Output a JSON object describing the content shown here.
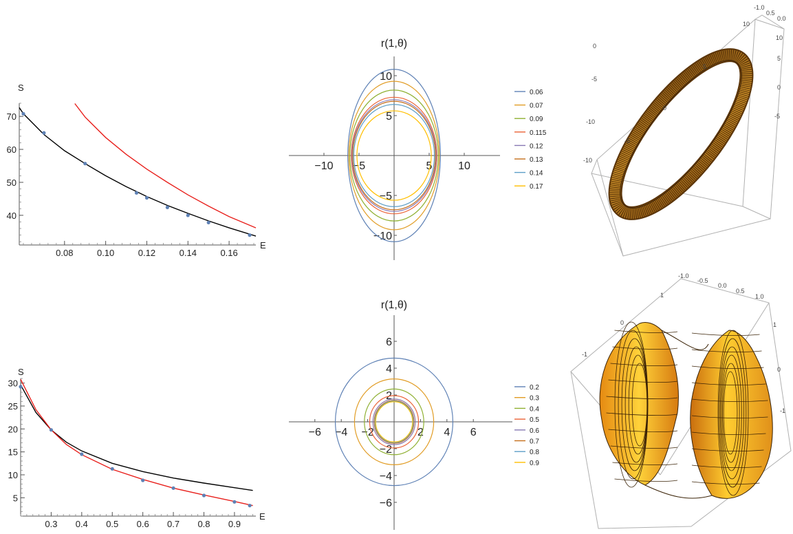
{
  "chart_data": [
    {
      "type": "line",
      "xlabel": "E",
      "ylabel": "S",
      "xlim": [
        0.058,
        0.173
      ],
      "ylim": [
        31,
        74
      ],
      "xticks": [
        0.08,
        0.1,
        0.12,
        0.14,
        0.16
      ],
      "xtick_labels": [
        "0.08",
        "0.10",
        "0.12",
        "0.14",
        "0.16"
      ],
      "yticks": [
        40,
        50,
        60,
        70
      ],
      "ytick_labels": [
        "40",
        "50",
        "60",
        "70"
      ],
      "points": {
        "color": "#5e81b5",
        "x": [
          0.06,
          0.07,
          0.09,
          0.115,
          0.12,
          0.13,
          0.14,
          0.15,
          0.17
        ],
        "y": [
          70.8,
          65.0,
          55.7,
          46.8,
          45.3,
          42.4,
          40.0,
          37.8,
          34.0
        ]
      },
      "series": [
        {
          "color": "#000000",
          "x": [
            0.058,
            0.06,
            0.07,
            0.08,
            0.09,
            0.1,
            0.11,
            0.115,
            0.12,
            0.13,
            0.14,
            0.15,
            0.16,
            0.173
          ],
          "y": [
            72.7,
            70.8,
            64.5,
            59.6,
            55.7,
            52.0,
            48.7,
            47.2,
            45.7,
            43.0,
            40.6,
            38.3,
            36.2,
            33.7
          ]
        },
        {
          "color": "#e8201c",
          "x": [
            0.085,
            0.09,
            0.1,
            0.11,
            0.12,
            0.13,
            0.14,
            0.15,
            0.16,
            0.173
          ],
          "y": [
            73.9,
            69.8,
            63.6,
            58.5,
            54.0,
            50.0,
            46.2,
            42.8,
            39.6,
            36.2
          ]
        }
      ]
    },
    {
      "type": "line",
      "title": "r(1,θ)",
      "xlim": [
        -13,
        13
      ],
      "ylim": [
        -13,
        13
      ],
      "xticks": [
        -10,
        -5,
        5,
        10
      ],
      "xtick_labels": [
        "−10",
        "−5",
        "5",
        "10"
      ],
      "yticks": [
        10,
        5,
        -5,
        -10
      ],
      "ytick_labels": [
        "10",
        "5",
        "−5",
        "−10"
      ],
      "series": [
        {
          "name": "0.06",
          "color": "#5e81b5",
          "rx": 6.6,
          "ry": 10.8
        },
        {
          "name": "0.07",
          "color": "#e19c24",
          "rx": 6.45,
          "ry": 9.3
        },
        {
          "name": "0.09",
          "color": "#8fb032",
          "rx": 6.3,
          "ry": 8.2
        },
        {
          "name": "0.115",
          "color": "#eb6235",
          "rx": 6.1,
          "ry": 7.3
        },
        {
          "name": "0.12",
          "color": "#8778b3",
          "rx": 6.0,
          "ry": 7.0
        },
        {
          "name": "0.13",
          "color": "#c56e1a",
          "rx": 5.9,
          "ry": 6.8
        },
        {
          "name": "0.14",
          "color": "#5d9ec7",
          "rx": 5.75,
          "ry": 6.4
        },
        {
          "name": "0.17",
          "color": "#ffbf00",
          "rx": 5.3,
          "ry": 5.6
        }
      ]
    },
    {
      "type": "line",
      "title": "r(1,θ)",
      "xlim": [
        -7,
        7
      ],
      "ylim": [
        -7,
        7
      ],
      "xticks": [
        -6,
        -4,
        -2,
        2,
        4,
        6
      ],
      "xtick_labels": [
        "−6",
        "−4",
        "−2",
        "2",
        "4",
        "6"
      ],
      "yticks": [
        6,
        4,
        2,
        -2,
        -4,
        -6
      ],
      "ytick_labels": [
        "6",
        "4",
        "2",
        "−2",
        "−4",
        "−6"
      ],
      "series": [
        {
          "name": "0.2",
          "color": "#5e81b5",
          "rx": 4.45,
          "ry": 4.75
        },
        {
          "name": "0.3",
          "color": "#e19c24",
          "rx": 3.0,
          "ry": 3.2
        },
        {
          "name": "0.4",
          "color": "#8fb032",
          "rx": 2.25,
          "ry": 2.45
        },
        {
          "name": "0.5",
          "color": "#eb6235",
          "rx": 1.85,
          "ry": 1.95
        },
        {
          "name": "0.6",
          "color": "#8778b3",
          "rx": 1.6,
          "ry": 1.7
        },
        {
          "name": "0.7",
          "color": "#c56e1a",
          "rx": 1.5,
          "ry": 1.6
        },
        {
          "name": "0.8",
          "color": "#5d9ec7",
          "rx": 1.45,
          "ry": 1.55
        },
        {
          "name": "0.9",
          "color": "#ffbf00",
          "rx": 1.4,
          "ry": 1.5
        }
      ]
    },
    {
      "type": "line",
      "xlabel": "E",
      "ylabel": "S",
      "xlim": [
        0.2,
        0.97
      ],
      "ylim": [
        1,
        31
      ],
      "xticks": [
        0.3,
        0.4,
        0.5,
        0.6,
        0.7,
        0.8,
        0.9
      ],
      "xtick_labels": [
        "0.3",
        "0.4",
        "0.5",
        "0.6",
        "0.7",
        "0.8",
        "0.9"
      ],
      "yticks": [
        5,
        10,
        15,
        20,
        25,
        30
      ],
      "ytick_labels": [
        "5",
        "10",
        "15",
        "20",
        "25",
        "30"
      ],
      "points": {
        "color": "#5e81b5",
        "x": [
          0.2,
          0.3,
          0.4,
          0.5,
          0.6,
          0.7,
          0.8,
          0.9,
          0.95
        ],
        "y": [
          29.2,
          19.8,
          14.5,
          11.3,
          8.8,
          7.1,
          5.5,
          4.1,
          3.3
        ]
      },
      "series": [
        {
          "color": "#000000",
          "x": [
            0.2,
            0.25,
            0.3,
            0.35,
            0.4,
            0.5,
            0.6,
            0.7,
            0.8,
            0.9,
            0.96
          ],
          "y": [
            29.6,
            23.6,
            19.8,
            17.1,
            15.2,
            12.5,
            10.7,
            9.3,
            8.2,
            7.2,
            6.6
          ]
        },
        {
          "color": "#e8201c",
          "x": [
            0.2,
            0.25,
            0.3,
            0.35,
            0.4,
            0.5,
            0.6,
            0.7,
            0.8,
            0.9,
            0.96
          ],
          "y": [
            30.8,
            24.2,
            19.8,
            16.6,
            14.4,
            11.2,
            9.0,
            7.1,
            5.6,
            4.2,
            3.3
          ]
        }
      ]
    },
    {
      "type": "other",
      "kind": "3d-surface",
      "shape": "thin elliptical band",
      "color": "#c98a1e",
      "tick_labels": [
        "-1.0",
        "0.5",
        "0.0",
        "10",
        "5",
        "0",
        "-5",
        "-10",
        "0",
        "-5",
        "-10",
        "10",
        "5",
        "0",
        "-5"
      ]
    },
    {
      "type": "other",
      "kind": "3d-surface",
      "shape": "hyperboloid of one sheet",
      "color": "#f5b21c",
      "tick_labels": [
        "-1.0",
        "-0.5",
        "0.0",
        "0.5",
        "1.0",
        "1",
        "0",
        "-1",
        "1",
        "0",
        "-1"
      ]
    }
  ]
}
